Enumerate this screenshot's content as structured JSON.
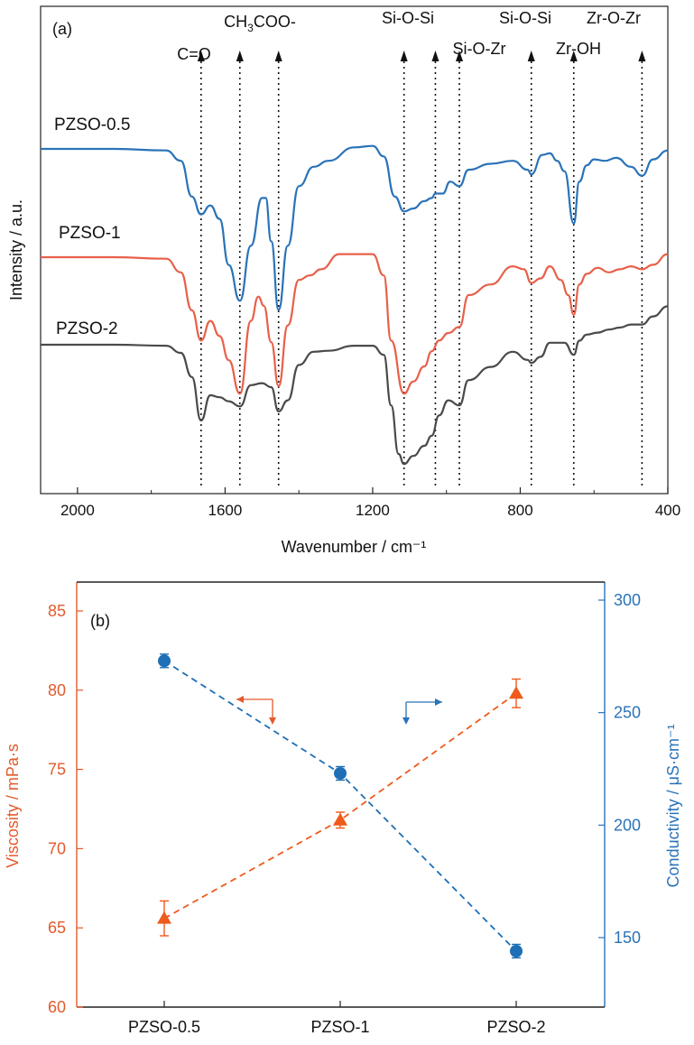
{
  "colors": {
    "blue": "#2a73b8",
    "red": "#e8604a",
    "gray": "#4a4a4a",
    "orange_axis": "#e35a2b",
    "blue_axis": "#2a73b8",
    "orange_marker": "#ef5a1d",
    "blue_marker": "#1e6fb5"
  },
  "chart_data": [
    {
      "type": "line",
      "panel_label": "(a)",
      "xlabel": "Wavenumber / cm⁻¹",
      "ylabel": "Intensity / a.u.",
      "xlim": [
        2100,
        400
      ],
      "x_reversed": true,
      "x_ticks": [
        2000,
        1600,
        1200,
        800,
        400
      ],
      "y_ticks_shown": false,
      "peak_lines": [
        1665,
        1560,
        1455,
        1115,
        1030,
        965,
        770,
        655,
        470
      ],
      "annotations": [
        {
          "text": "C=O",
          "x": 1665
        },
        {
          "text": "CH",
          "sub": "3",
          "rest": "COO-",
          "x": 1560
        },
        {
          "text": "Si-O-Si",
          "x": 1115
        },
        {
          "text": "Si-O-Zr",
          "x": 965
        },
        {
          "text": "Si-O-Si",
          "x": 770
        },
        {
          "text": "Zr-OH",
          "x": 655
        },
        {
          "text": "Zr-O-Zr",
          "x": 470
        }
      ],
      "series": [
        {
          "name": "PZSO-0.5",
          "color_key": "blue",
          "offset": 1.0,
          "points": [
            [
              2100,
              0.0
            ],
            [
              1900,
              0.0
            ],
            [
              1760,
              -0.01
            ],
            [
              1720,
              -0.08
            ],
            [
              1690,
              -0.32
            ],
            [
              1665,
              -0.44
            ],
            [
              1640,
              -0.38
            ],
            [
              1615,
              -0.47
            ],
            [
              1590,
              -0.78
            ],
            [
              1560,
              -1.02
            ],
            [
              1530,
              -0.65
            ],
            [
              1500,
              -0.33
            ],
            [
              1490,
              -0.33
            ],
            [
              1475,
              -0.62
            ],
            [
              1455,
              -1.08
            ],
            [
              1430,
              -0.65
            ],
            [
              1400,
              -0.25
            ],
            [
              1360,
              -0.12
            ],
            [
              1320,
              -0.08
            ],
            [
              1250,
              0.01
            ],
            [
              1200,
              0.02
            ],
            [
              1170,
              -0.05
            ],
            [
              1140,
              -0.32
            ],
            [
              1115,
              -0.42
            ],
            [
              1090,
              -0.4
            ],
            [
              1060,
              -0.35
            ],
            [
              1040,
              -0.33
            ],
            [
              1030,
              -0.3
            ],
            [
              1010,
              -0.3
            ],
            [
              990,
              -0.22
            ],
            [
              965,
              -0.25
            ],
            [
              940,
              -0.14
            ],
            [
              880,
              -0.1
            ],
            [
              820,
              -0.08
            ],
            [
              780,
              -0.14
            ],
            [
              770,
              -0.17
            ],
            [
              740,
              -0.04
            ],
            [
              720,
              -0.03
            ],
            [
              700,
              -0.08
            ],
            [
              680,
              -0.15
            ],
            [
              655,
              -0.5
            ],
            [
              640,
              -0.22
            ],
            [
              620,
              -0.11
            ],
            [
              600,
              -0.07
            ],
            [
              570,
              -0.08
            ],
            [
              540,
              -0.06
            ],
            [
              500,
              -0.12
            ],
            [
              470,
              -0.18
            ],
            [
              440,
              -0.07
            ],
            [
              400,
              -0.01
            ]
          ]
        },
        {
          "name": "PZSO-1",
          "color_key": "red",
          "offset": 0.0,
          "points": [
            [
              2100,
              0.0
            ],
            [
              1900,
              0.0
            ],
            [
              1760,
              -0.01
            ],
            [
              1720,
              -0.1
            ],
            [
              1690,
              -0.35
            ],
            [
              1665,
              -0.55
            ],
            [
              1640,
              -0.42
            ],
            [
              1615,
              -0.52
            ],
            [
              1590,
              -0.68
            ],
            [
              1560,
              -0.9
            ],
            [
              1530,
              -0.42
            ],
            [
              1510,
              -0.26
            ],
            [
              1495,
              -0.32
            ],
            [
              1475,
              -0.56
            ],
            [
              1455,
              -0.85
            ],
            [
              1430,
              -0.45
            ],
            [
              1400,
              -0.15
            ],
            [
              1370,
              -0.12
            ],
            [
              1340,
              -0.08
            ],
            [
              1290,
              0.02
            ],
            [
              1240,
              0.02
            ],
            [
              1200,
              0.02
            ],
            [
              1170,
              -0.12
            ],
            [
              1150,
              -0.55
            ],
            [
              1115,
              -0.9
            ],
            [
              1090,
              -0.82
            ],
            [
              1060,
              -0.72
            ],
            [
              1040,
              -0.62
            ],
            [
              1020,
              -0.55
            ],
            [
              995,
              -0.5
            ],
            [
              965,
              -0.46
            ],
            [
              940,
              -0.25
            ],
            [
              880,
              -0.18
            ],
            [
              820,
              -0.06
            ],
            [
              790,
              -0.08
            ],
            [
              770,
              -0.17
            ],
            [
              745,
              -0.14
            ],
            [
              720,
              -0.06
            ],
            [
              690,
              -0.15
            ],
            [
              670,
              -0.25
            ],
            [
              655,
              -0.38
            ],
            [
              640,
              -0.18
            ],
            [
              620,
              -0.11
            ],
            [
              590,
              -0.07
            ],
            [
              560,
              -0.1
            ],
            [
              530,
              -0.08
            ],
            [
              500,
              -0.06
            ],
            [
              470,
              -0.08
            ],
            [
              440,
              -0.05
            ],
            [
              400,
              0.02
            ]
          ]
        },
        {
          "name": "PZSO-2",
          "color_key": "gray",
          "offset": -1.0,
          "points": [
            [
              2100,
              0.0
            ],
            [
              1900,
              0.0
            ],
            [
              1760,
              -0.01
            ],
            [
              1720,
              -0.08
            ],
            [
              1690,
              -0.32
            ],
            [
              1665,
              -0.75
            ],
            [
              1640,
              -0.5
            ],
            [
              1615,
              -0.52
            ],
            [
              1590,
              -0.56
            ],
            [
              1560,
              -0.61
            ],
            [
              1530,
              -0.4
            ],
            [
              1500,
              -0.38
            ],
            [
              1475,
              -0.42
            ],
            [
              1455,
              -0.66
            ],
            [
              1430,
              -0.55
            ],
            [
              1400,
              -0.2
            ],
            [
              1360,
              -0.07
            ],
            [
              1320,
              -0.06
            ],
            [
              1250,
              -0.01
            ],
            [
              1200,
              -0.01
            ],
            [
              1170,
              -0.1
            ],
            [
              1150,
              -0.6
            ],
            [
              1130,
              -1.08
            ],
            [
              1115,
              -1.18
            ],
            [
              1090,
              -1.1
            ],
            [
              1060,
              -1.0
            ],
            [
              1040,
              -0.9
            ],
            [
              1020,
              -0.7
            ],
            [
              995,
              -0.55
            ],
            [
              965,
              -0.6
            ],
            [
              940,
              -0.35
            ],
            [
              880,
              -0.22
            ],
            [
              820,
              -0.07
            ],
            [
              780,
              -0.15
            ],
            [
              770,
              -0.18
            ],
            [
              745,
              -0.12
            ],
            [
              720,
              0.02
            ],
            [
              700,
              0.02
            ],
            [
              680,
              0.02
            ],
            [
              655,
              -0.1
            ],
            [
              640,
              0.04
            ],
            [
              620,
              0.1
            ],
            [
              590,
              0.12
            ],
            [
              560,
              0.15
            ],
            [
              530,
              0.17
            ],
            [
              500,
              0.2
            ],
            [
              470,
              0.2
            ],
            [
              440,
              0.28
            ],
            [
              400,
              0.38
            ]
          ]
        }
      ]
    },
    {
      "type": "scatter",
      "panel_label": "(b)",
      "categories": [
        "PZSO-0.5",
        "PZSO-1",
        "PZSO-2"
      ],
      "y_left": {
        "label": "Viscosity / mPa·s",
        "lim": [
          60,
          85
        ],
        "ticks": [
          60,
          65,
          70,
          75,
          80,
          85
        ]
      },
      "y_right": {
        "label": "Conductivity / μS·cm⁻¹",
        "lim": [
          130,
          300
        ],
        "ticks": [
          150,
          200,
          250,
          300
        ]
      },
      "series": [
        {
          "name": "Viscosity",
          "axis": "left",
          "marker": "triangle",
          "color_key": "orange_marker",
          "values": [
            65.6,
            71.8,
            79.8
          ],
          "errors": [
            1.1,
            0.5,
            0.9
          ]
        },
        {
          "name": "Conductivity",
          "axis": "right",
          "marker": "circle",
          "color_key": "blue_marker",
          "values": [
            273,
            223,
            144
          ],
          "errors": [
            3,
            3,
            3
          ]
        }
      ]
    }
  ]
}
